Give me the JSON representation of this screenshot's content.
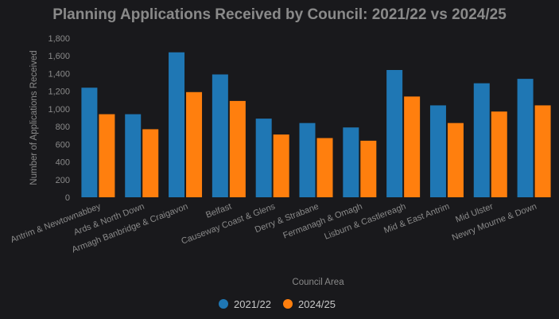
{
  "chart_data": {
    "type": "bar",
    "title": "Planning Applications Received by Council: 2021/22 vs 2024/25",
    "xlabel": "Council Area",
    "ylabel": "Number of Applications Received",
    "ylim": [
      0,
      1800
    ],
    "yticks": [
      "0",
      "200",
      "400",
      "600",
      "800",
      "1,000",
      "1,200",
      "1,400",
      "1,600",
      "1,800"
    ],
    "categories": [
      "Antrim & Newtownabbey",
      "Ards & North Down",
      "Armagh Banbridge & Craigavon",
      "Belfast",
      "Causeway Coast & Glens",
      "Derry & Strabane",
      "Fermanagh & Omagh",
      "Lisburn & Castlereagh",
      "Mid & East Antrim",
      "Mid Ulster",
      "Newry Mourne & Down"
    ],
    "series": [
      {
        "name": "2021/22",
        "color": "#1f77b4",
        "values": [
          1240,
          940,
          1640,
          1390,
          890,
          840,
          790,
          1440,
          1040,
          1290,
          1340
        ]
      },
      {
        "name": "2024/25",
        "color": "#ff7f0e",
        "values": [
          940,
          770,
          1190,
          1090,
          710,
          670,
          640,
          1140,
          840,
          970,
          1040
        ]
      }
    ],
    "grid": false,
    "legend_position": "bottom"
  }
}
